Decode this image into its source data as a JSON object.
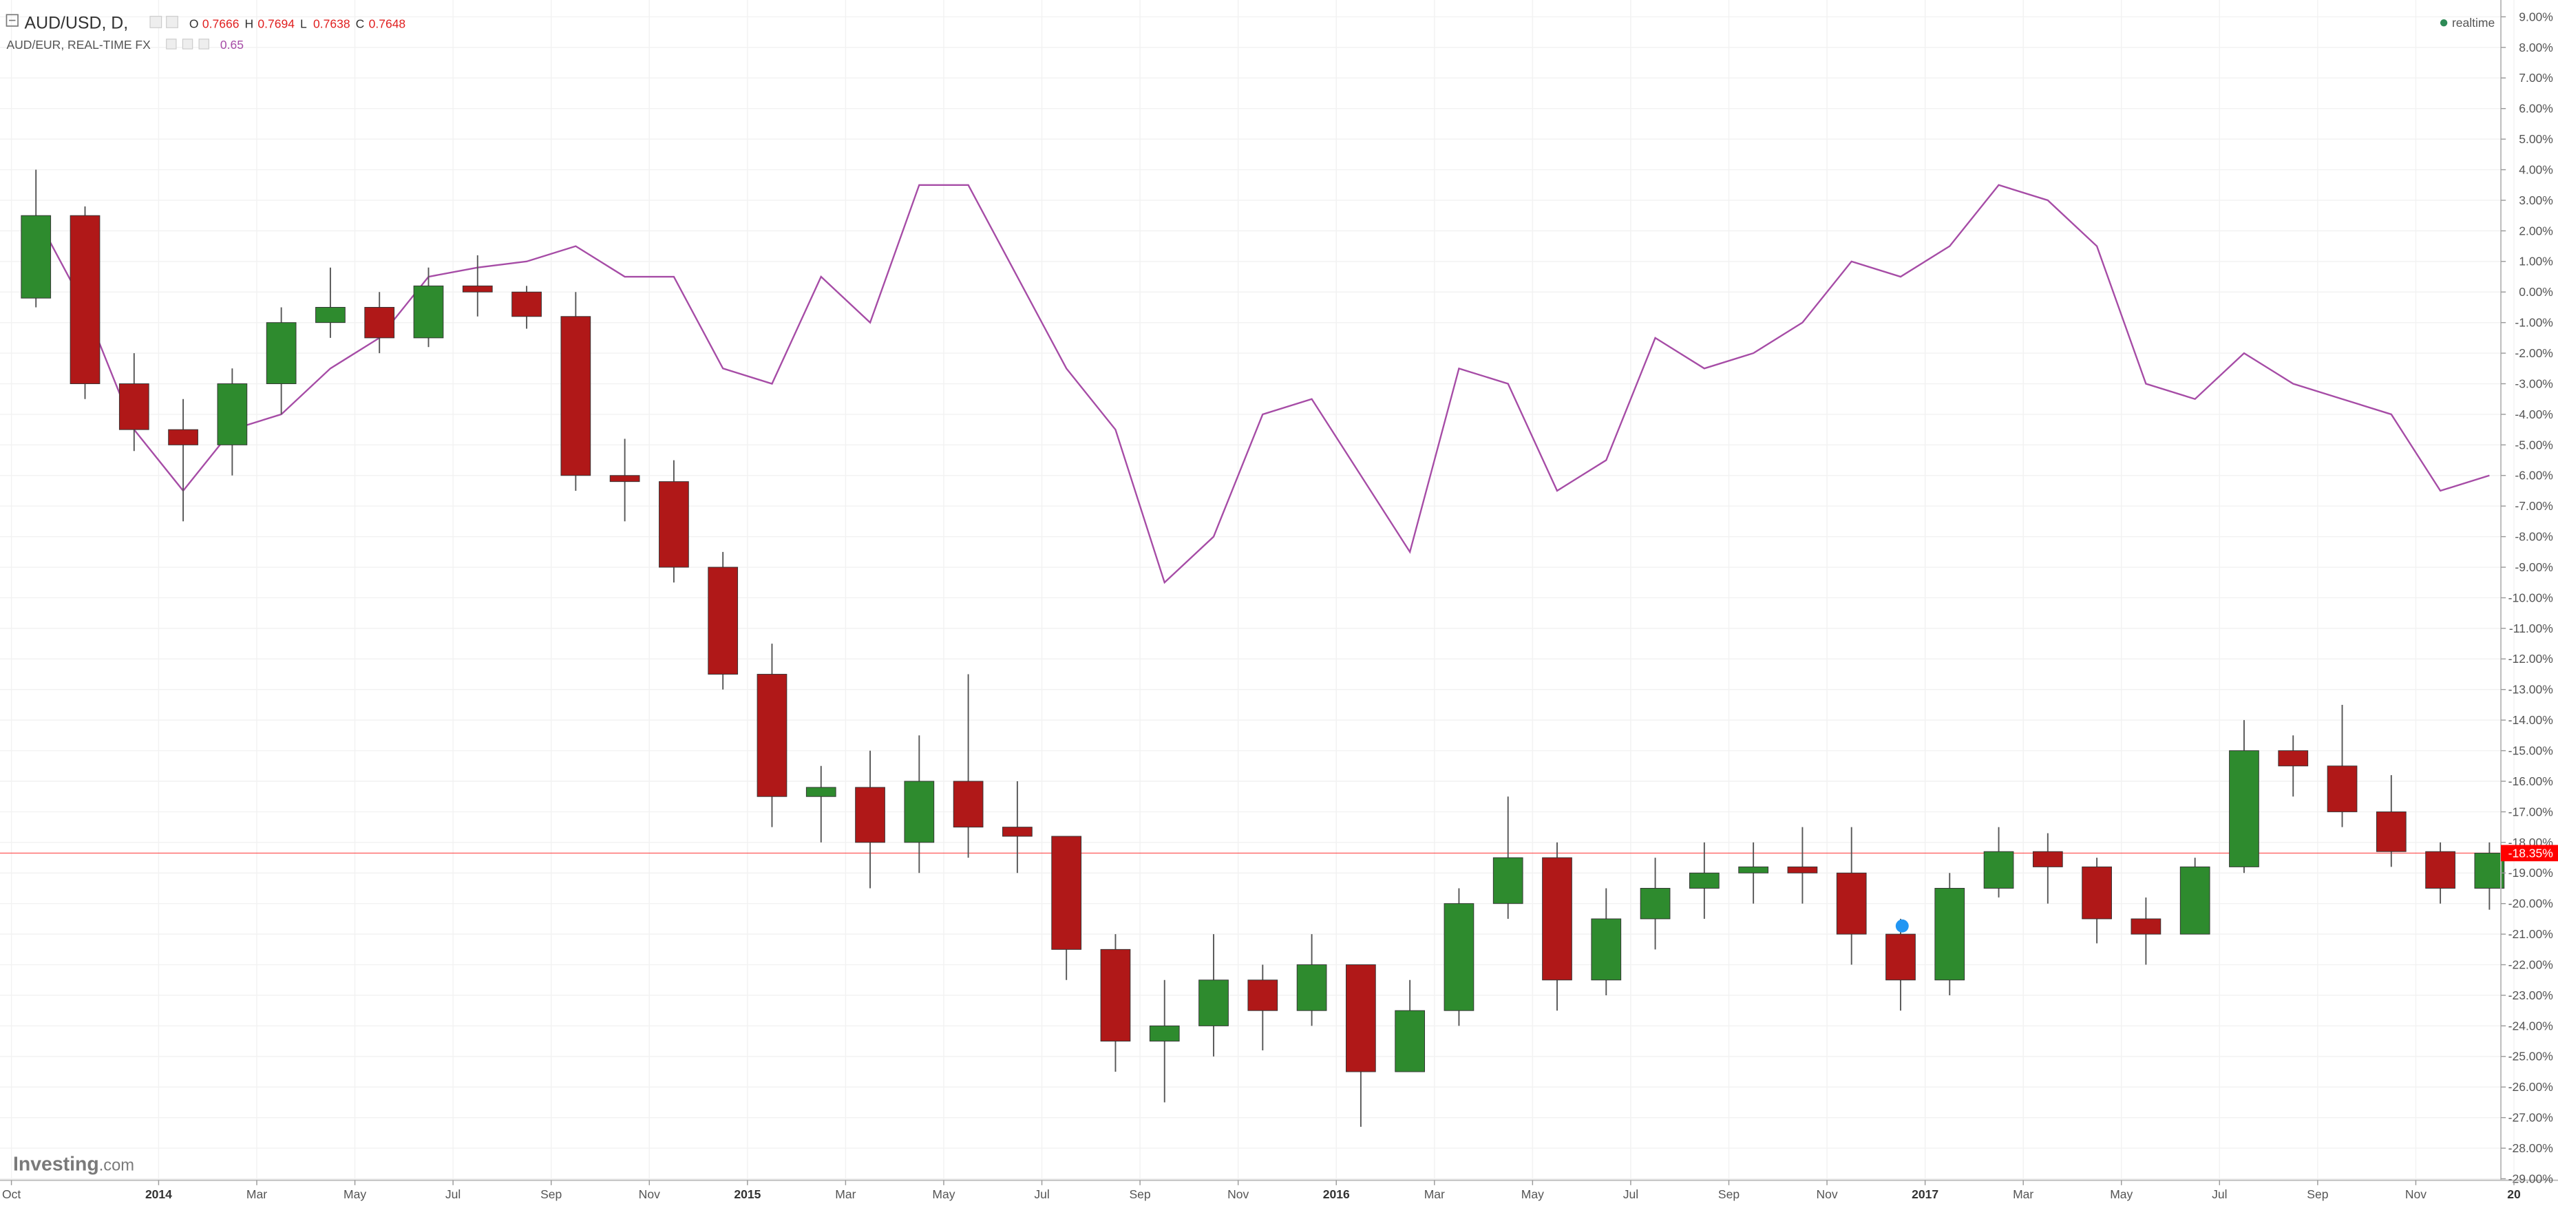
{
  "header": {
    "symbol": "AUD/USD, D,",
    "ohlc": [
      {
        "label": "O",
        "value": 0.7666
      },
      {
        "label": "H",
        "value": 0.7694
      },
      {
        "label": "L",
        "value": 0.7638
      },
      {
        "label": "C",
        "value": 0.7648
      }
    ],
    "compare": "AUD/EUR, REAL-TIME FX",
    "compare_value": 0.65,
    "status": "realtime",
    "logo": "Investing",
    "logo_suffix": ".com"
  },
  "chart_data": {
    "type": "candlestick",
    "x": [
      "2013-10",
      "2013-11",
      "2013-12",
      "2014-01",
      "2014-02",
      "2014-03",
      "2014-04",
      "2014-05",
      "2014-06",
      "2014-07",
      "2014-08",
      "2014-09",
      "2014-10",
      "2014-11",
      "2014-12",
      "2015-01",
      "2015-02",
      "2015-03",
      "2015-04",
      "2015-05",
      "2015-06",
      "2015-07",
      "2015-08",
      "2015-09",
      "2015-10",
      "2015-11",
      "2015-12",
      "2016-01",
      "2016-02",
      "2016-03",
      "2016-04",
      "2016-05",
      "2016-06",
      "2016-07",
      "2016-08",
      "2016-09",
      "2016-10",
      "2016-11",
      "2016-12",
      "2017-01",
      "2017-02",
      "2017-03",
      "2017-04",
      "2017-05",
      "2017-06",
      "2017-07",
      "2017-08",
      "2017-09",
      "2017-10",
      "2017-11",
      "2017-12"
    ],
    "xlim": [
      "2013-10",
      "2018-01"
    ],
    "series": [
      {
        "type": "candlestick",
        "up_color": "#2e8b2e",
        "down_color": "#b01818",
        "wick_color": "#555555",
        "open": [
          -0.2,
          2.5,
          -3,
          -4.5,
          -5,
          -3,
          -1,
          -0.5,
          -1.5,
          0.2,
          0,
          -0.8,
          -6,
          -6.2,
          -9,
          -12.5,
          -16.5,
          -16.2,
          -18,
          -16,
          -17.5,
          -17.8,
          -21.5,
          -24.5,
          -24,
          -22.5,
          -23.5,
          -22,
          -25.5,
          -23.5,
          -20,
          -18.5,
          -22.5,
          -20.5,
          -19.5,
          -19,
          -18.8,
          -19,
          -21,
          -22.5,
          -19.5,
          -18.3,
          -18.8,
          -20.5,
          -21,
          -18.8,
          -15,
          -15.5,
          -17,
          -18.3,
          -19.5
        ],
        "high": [
          4,
          2.8,
          -2,
          -3.5,
          -2.5,
          -0.5,
          0.8,
          0,
          0.8,
          1.2,
          0.2,
          0,
          -4.8,
          -5.5,
          -8.5,
          -11.5,
          -15.5,
          -15,
          -14.5,
          -12.5,
          -16,
          -18,
          -21,
          -22.5,
          -21,
          -22,
          -21,
          -22,
          -22.5,
          -19.5,
          -16.5,
          -18,
          -19.5,
          -18.5,
          -18,
          -18,
          -17.5,
          -17.5,
          -20.5,
          -19,
          -17.5,
          -17.7,
          -18.5,
          -19.8,
          -18.5,
          -14,
          -14.5,
          -13.5,
          -15.8,
          -18,
          -18
        ],
        "low": [
          -0.5,
          -3.5,
          -5.2,
          -7.5,
          -6,
          -4,
          -1.5,
          -2,
          -1.8,
          -0.8,
          -1.2,
          -6.5,
          -7.5,
          -9.5,
          -13,
          -17.5,
          -18,
          -19.5,
          -19,
          -18.5,
          -19,
          -22.5,
          -25.5,
          -26.5,
          -25,
          -24.8,
          -24,
          -27.3,
          -25.5,
          -24,
          -20.5,
          -23.5,
          -23,
          -21.5,
          -20.5,
          -20,
          -20,
          -22,
          -23.5,
          -23,
          -19.8,
          -20,
          -21.3,
          -22,
          -21,
          -19,
          -16.5,
          -17.5,
          -18.8,
          -20,
          -20.2
        ],
        "close": [
          2.5,
          -3,
          -4.5,
          -5,
          -3,
          -1,
          -0.5,
          -1.5,
          0.2,
          0,
          -0.8,
          -6,
          -6.2,
          -9,
          -12.5,
          -16.5,
          -16.2,
          -18,
          -16,
          -17.5,
          -17.8,
          -21.5,
          -24.5,
          -24,
          -22.5,
          -23.5,
          -22,
          -25.5,
          -23.5,
          -20,
          -18.5,
          -22.5,
          -20.5,
          -19.5,
          -19,
          -18.8,
          -19,
          -21,
          -22.5,
          -19.5,
          -18.3,
          -18.8,
          -20.5,
          -21,
          -18.8,
          -15,
          -15.5,
          -17,
          -18.3,
          -19.5,
          -18.35
        ]
      },
      {
        "type": "line",
        "color": "#a64ca6",
        "values": [
          2.5,
          -0.5,
          -4.5,
          -6.5,
          -4.5,
          -4,
          -2.5,
          -1.5,
          0.5,
          0.8,
          1,
          1.5,
          0.5,
          0.5,
          -2.5,
          -3,
          0.5,
          -1,
          3.5,
          3.5,
          0.5,
          -2.5,
          -4.5,
          -9.5,
          -8,
          -4,
          -3.5,
          -6,
          -8.5,
          -2.5,
          -3,
          -6.5,
          -5.5,
          -1.5,
          -2.5,
          -2,
          -1,
          1,
          0.5,
          1.5,
          3.5,
          3,
          1.5,
          -3,
          -3.5,
          -2,
          -3,
          -3.5,
          -4,
          -6.5,
          -6
        ]
      }
    ],
    "ylim": [
      -29.05,
      9.55
    ],
    "yticks": [
      {
        "value": 9,
        "label": "9.00%"
      },
      {
        "value": 8,
        "label": "8.00%"
      },
      {
        "value": 7,
        "label": "7.00%"
      },
      {
        "value": 6,
        "label": "6.00%"
      },
      {
        "value": 5,
        "label": "5.00%"
      },
      {
        "value": 4,
        "label": "4.00%"
      },
      {
        "value": 3,
        "label": "3.00%"
      },
      {
        "value": 2,
        "label": "2.00%"
      },
      {
        "value": 1,
        "label": "1.00%"
      },
      {
        "value": 0,
        "label": "0.00%"
      },
      {
        "value": -1,
        "label": "-1.00%"
      },
      {
        "value": -2,
        "label": "-2.00%"
      },
      {
        "value": -3,
        "label": "-3.00%"
      },
      {
        "value": -4,
        "label": "-4.00%"
      },
      {
        "value": -5,
        "label": "-5.00%"
      },
      {
        "value": -6,
        "label": "-6.00%"
      },
      {
        "value": -7,
        "label": "-7.00%"
      },
      {
        "value": -8,
        "label": "-8.00%"
      },
      {
        "value": -9,
        "label": "-9.00%"
      },
      {
        "value": -10,
        "label": "-10.00%"
      },
      {
        "value": -11,
        "label": "-11.00%"
      },
      {
        "value": -12,
        "label": "-12.00%"
      },
      {
        "value": -13,
        "label": "-13.00%"
      },
      {
        "value": -14,
        "label": "-14.00%"
      },
      {
        "value": -15,
        "label": "-15.00%"
      },
      {
        "value": -16,
        "label": "-16.00%"
      },
      {
        "value": -17,
        "label": "-17.00%"
      },
      {
        "value": -18,
        "label": "-18.00%"
      },
      {
        "value": -19,
        "label": "-19.00%"
      },
      {
        "value": -20,
        "label": "-20.00%"
      },
      {
        "value": -21,
        "label": "-21.00%"
      },
      {
        "value": -22,
        "label": "-22.00%"
      },
      {
        "value": -23,
        "label": "-23.00%"
      },
      {
        "value": -24,
        "label": "-24.00%"
      },
      {
        "value": -25,
        "label": "-25.00%"
      },
      {
        "value": -26,
        "label": "-26.00%"
      },
      {
        "value": -27,
        "label": "-27.00%"
      },
      {
        "value": -28,
        "label": "-28.00%"
      },
      {
        "value": -29,
        "label": "-29.00%"
      }
    ],
    "xticks": [
      {
        "value": "2013-10",
        "label": "Oct"
      },
      {
        "value": "2014-01",
        "label": "2014"
      },
      {
        "value": "2014-03",
        "label": "Mar"
      },
      {
        "value": "2014-05",
        "label": "May"
      },
      {
        "value": "2014-07",
        "label": "Jul"
      },
      {
        "value": "2014-09",
        "label": "Sep"
      },
      {
        "value": "2014-11",
        "label": "Nov"
      },
      {
        "value": "2015-01",
        "label": "2015"
      },
      {
        "value": "2015-03",
        "label": "Mar"
      },
      {
        "value": "2015-05",
        "label": "May"
      },
      {
        "value": "2015-07",
        "label": "Jul"
      },
      {
        "value": "2015-09",
        "label": "Sep"
      },
      {
        "value": "2015-11",
        "label": "Nov"
      },
      {
        "value": "2016-01",
        "label": "2016"
      },
      {
        "value": "2016-03",
        "label": "Mar"
      },
      {
        "value": "2016-05",
        "label": "May"
      },
      {
        "value": "2016-07",
        "label": "Jul"
      },
      {
        "value": "2016-09",
        "label": "Sep"
      },
      {
        "value": "2016-11",
        "label": "Nov"
      },
      {
        "value": "2017-01",
        "label": "2017"
      },
      {
        "value": "2017-03",
        "label": "Mar"
      },
      {
        "value": "2017-05",
        "label": "May"
      },
      {
        "value": "2017-07",
        "label": "Jul"
      },
      {
        "value": "2017-09",
        "label": "Sep"
      },
      {
        "value": "2017-11",
        "label": "Nov"
      },
      {
        "value": "2018-01",
        "label": "20"
      }
    ],
    "price_line": {
      "value": -18.35,
      "label": "-18.35%",
      "color": "#ff0000"
    },
    "grid": true
  }
}
